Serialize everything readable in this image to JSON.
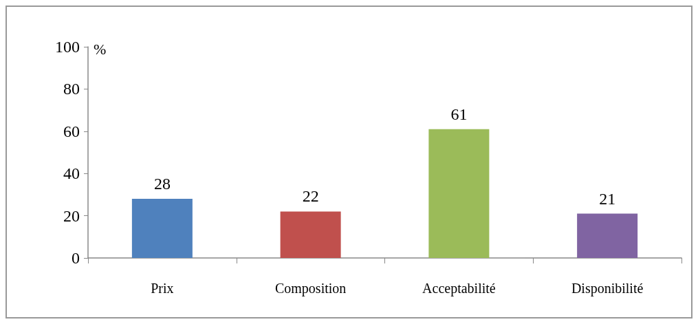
{
  "chart_data": {
    "type": "bar",
    "ylabel": "%",
    "categories": [
      "Prix",
      "Composition",
      "Acceptabilité",
      "Disponibilité"
    ],
    "values": [
      28,
      22,
      61,
      21
    ],
    "colors": [
      "#4f81bd",
      "#c0504d",
      "#9bbb59",
      "#8064a2"
    ],
    "ylim": [
      0,
      100
    ],
    "yticks": [
      0,
      20,
      40,
      60,
      80,
      100
    ],
    "grid": false,
    "data_labels": true
  }
}
